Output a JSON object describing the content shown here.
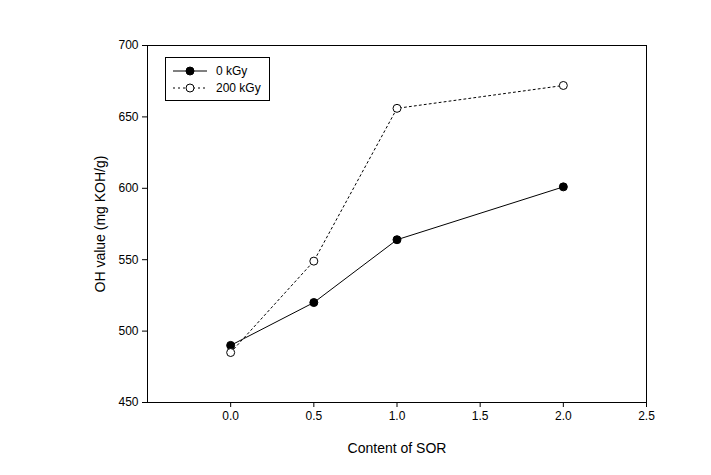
{
  "chart_data": {
    "type": "line",
    "x_label": "Content of SOR",
    "y_label": "OH value (mg KOH/g)",
    "x": [
      0,
      0.5,
      1,
      2
    ],
    "series": [
      {
        "name": "0 kGy",
        "color": "#000000",
        "marker": "circle",
        "line_style": "solid",
        "values": [
          490,
          520,
          564,
          601
        ]
      },
      {
        "name": "200 kGy",
        "color": "#000000",
        "marker": "open_circle",
        "line_style": "dotted",
        "values": [
          485,
          549,
          656,
          672
        ]
      }
    ],
    "xlim": [
      -0.5,
      2.5
    ],
    "xticks": [
      {
        "value": 0,
        "label": "0.0"
      },
      {
        "value": 0.5,
        "label": "0.5"
      },
      {
        "value": 1,
        "label": "1.0"
      },
      {
        "value": 1.5,
        "label": "1.5"
      },
      {
        "value": 2,
        "label": "2.0"
      },
      {
        "value": 2.5,
        "label": "2.5"
      }
    ],
    "ylim": [
      450,
      700
    ],
    "yticks": [
      450,
      500,
      550,
      600,
      650,
      700
    ],
    "legend": "upper left",
    "grid": false
  }
}
